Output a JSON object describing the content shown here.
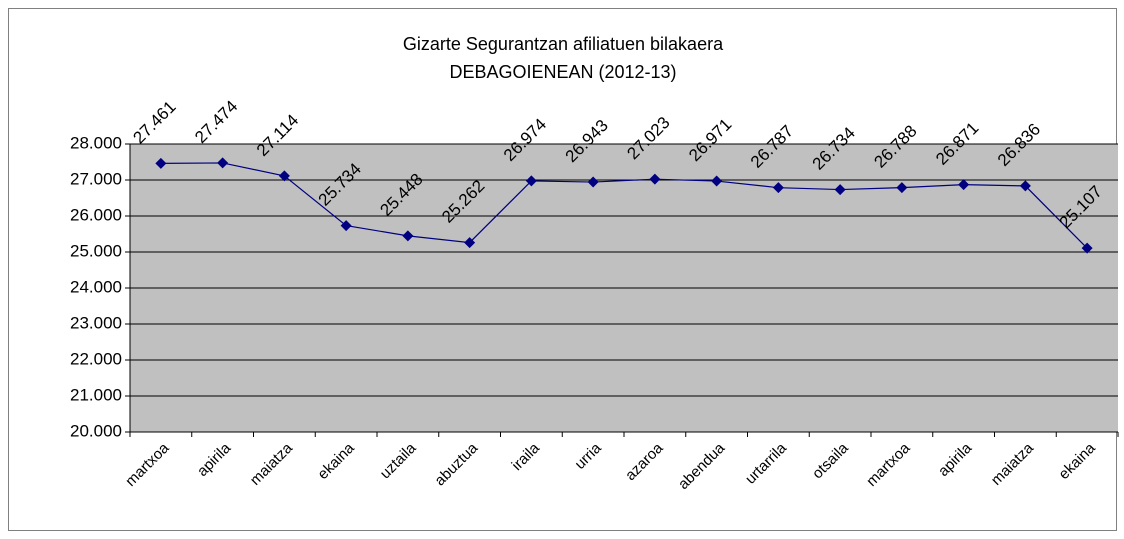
{
  "chart_data": {
    "type": "line",
    "title": "Gizarte Segurantzan afiliatuen bilakaera",
    "subtitle": "DEBAGOIENEAN (2012-13)",
    "categories": [
      "martxoa",
      "apirila",
      "maiatza",
      "ekaina",
      "uztaila",
      "abuztua",
      "iraila",
      "urria",
      "azaroa",
      "abendua",
      "urtarrila",
      "otsaila",
      "martxoa",
      "apirila",
      "maiatza",
      "ekaina"
    ],
    "values": [
      27461,
      27474,
      27114,
      25734,
      25448,
      25262,
      26974,
      26943,
      27023,
      26971,
      26787,
      26734,
      26788,
      26871,
      26836,
      25107
    ],
    "value_labels": [
      "27.461",
      "27.474",
      "27.114",
      "25.734",
      "25.448",
      "25.262",
      "26.974",
      "26.943",
      "27.023",
      "26.971",
      "26.787",
      "26.734",
      "26.788",
      "26.871",
      "26.836",
      "25.107"
    ],
    "color": "#000080",
    "plot_background": "#c0c0c0",
    "ylim": [
      20000,
      28000
    ],
    "yticks": [
      {
        "value": 20000,
        "label": "20.000"
      },
      {
        "value": 21000,
        "label": "21.000"
      },
      {
        "value": 22000,
        "label": "22.000"
      },
      {
        "value": 23000,
        "label": "23.000"
      },
      {
        "value": 24000,
        "label": "24.000"
      },
      {
        "value": 25000,
        "label": "25.000"
      },
      {
        "value": 26000,
        "label": "26.000"
      },
      {
        "value": 27000,
        "label": "27.000"
      },
      {
        "value": 28000,
        "label": "28.000"
      }
    ],
    "grid": true
  }
}
